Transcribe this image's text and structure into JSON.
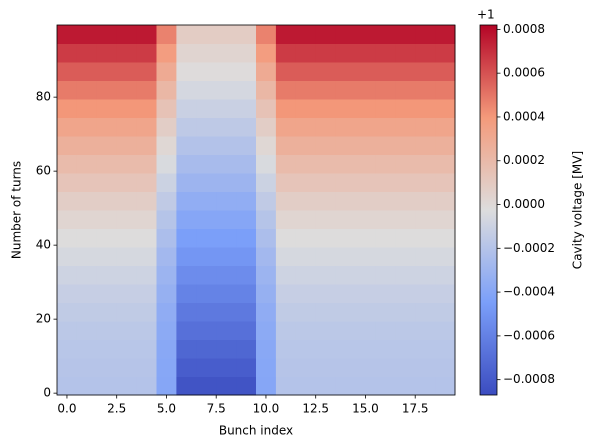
{
  "chart_data": {
    "type": "heatmap",
    "xlabel": "Bunch index",
    "ylabel": "Number of turns",
    "colorbar_label": "Cavity voltage [MV]",
    "colorbar_offset": "+1",
    "colormap": "coolwarm",
    "x": [
      0,
      1,
      2,
      3,
      4,
      5,
      6,
      7,
      8,
      9,
      10,
      11,
      12,
      13,
      14,
      15,
      16,
      17,
      18,
      19
    ],
    "y": [
      2,
      7,
      12,
      17,
      22,
      27,
      32,
      37,
      42,
      47,
      52,
      57,
      62,
      67,
      72,
      77,
      82,
      87,
      92,
      97
    ],
    "z": [
      [
        -0.0002,
        -0.0002,
        -0.0002,
        -0.0002,
        -0.0002,
        -0.0004,
        -0.000831,
        -0.000831,
        -0.000831,
        -0.000831,
        -0.0004,
        -0.0002,
        -0.0002,
        -0.0002,
        -0.0002,
        -0.0002,
        -0.0002,
        -0.0002,
        -0.0002,
        -0.0002
      ],
      [
        -0.000195,
        -0.000195,
        -0.000195,
        -0.000195,
        -0.000195,
        -0.000396,
        -0.000783,
        -0.000783,
        -0.000783,
        -0.000783,
        -0.000396,
        -0.000195,
        -0.000195,
        -0.000195,
        -0.000195,
        -0.000195,
        -0.000195,
        -0.000195,
        -0.000195,
        -0.000195
      ],
      [
        -0.000185,
        -0.000185,
        -0.000185,
        -0.000185,
        -0.000185,
        -0.000387,
        -0.000735,
        -0.000735,
        -0.000735,
        -0.000735,
        -0.000387,
        -0.000185,
        -0.000185,
        -0.000185,
        -0.000185,
        -0.000185,
        -0.000185,
        -0.000185,
        -0.000185,
        -0.000185
      ],
      [
        -0.00017,
        -0.00017,
        -0.00017,
        -0.00017,
        -0.00017,
        -0.000373,
        -0.000687,
        -0.000687,
        -0.000687,
        -0.000687,
        -0.000373,
        -0.00017,
        -0.00017,
        -0.00017,
        -0.00017,
        -0.00017,
        -0.00017,
        -0.00017,
        -0.00017,
        -0.00017
      ],
      [
        -0.00015,
        -0.00015,
        -0.00015,
        -0.00015,
        -0.00015,
        -0.000356,
        -0.000639,
        -0.000639,
        -0.000639,
        -0.000639,
        -0.000356,
        -0.00015,
        -0.00015,
        -0.00015,
        -0.00015,
        -0.00015,
        -0.00015,
        -0.00015,
        -0.00015,
        -0.00015
      ],
      [
        -0.000126,
        -0.000126,
        -0.000126,
        -0.000126,
        -0.000126,
        -0.000333,
        -0.000591,
        -0.000591,
        -0.000591,
        -0.000591,
        -0.000333,
        -0.000126,
        -0.000126,
        -0.000126,
        -0.000126,
        -0.000126,
        -0.000126,
        -0.000126,
        -0.000126,
        -0.000126
      ],
      [
        -9.6e-05,
        -9.6e-05,
        -9.6e-05,
        -9.6e-05,
        -9.6e-05,
        -0.000306,
        -0.000543,
        -0.000543,
        -0.000543,
        -0.000543,
        -0.000306,
        -9.6e-05,
        -9.6e-05,
        -9.6e-05,
        -9.6e-05,
        -9.6e-05,
        -9.6e-05,
        -9.6e-05,
        -9.6e-05,
        -9.6e-05
      ],
      [
        -6e-05,
        -6e-05,
        -6e-05,
        -6e-05,
        -6e-05,
        -0.000274,
        -0.000495,
        -0.000495,
        -0.000495,
        -0.000495,
        -0.000274,
        -6e-05,
        -6e-05,
        -6e-05,
        -6e-05,
        -6e-05,
        -6e-05,
        -6e-05,
        -6e-05,
        -6e-05
      ],
      [
        -2e-05,
        -2e-05,
        -2e-05,
        -2e-05,
        -2e-05,
        -0.000238,
        -0.000447,
        -0.000447,
        -0.000447,
        -0.000447,
        -0.000238,
        -2e-05,
        -2e-05,
        -2e-05,
        -2e-05,
        -2e-05,
        -2e-05,
        -2e-05,
        -2e-05,
        -2e-05
      ],
      [
        2.5e-05,
        2.5e-05,
        2.5e-05,
        2.5e-05,
        2.5e-05,
        -0.000197,
        -0.000399,
        -0.000399,
        -0.000399,
        -0.000399,
        -0.000197,
        2.5e-05,
        2.5e-05,
        2.5e-05,
        2.5e-05,
        2.5e-05,
        2.5e-05,
        2.5e-05,
        2.5e-05,
        2.5e-05
      ],
      [
        7.6e-05,
        7.6e-05,
        7.6e-05,
        7.6e-05,
        7.6e-05,
        -0.000152,
        -0.000351,
        -0.000351,
        -0.000351,
        -0.000351,
        -0.000152,
        7.6e-05,
        7.6e-05,
        7.6e-05,
        7.6e-05,
        7.6e-05,
        7.6e-05,
        7.6e-05,
        7.6e-05,
        7.6e-05
      ],
      [
        0.000132,
        0.000132,
        0.000132,
        0.000132,
        0.000132,
        -0.000102,
        -0.000303,
        -0.000303,
        -0.000303,
        -0.000303,
        -0.000102,
        0.000132,
        0.000132,
        0.000132,
        0.000132,
        0.000132,
        0.000132,
        0.000132,
        0.000132,
        0.000132
      ],
      [
        0.000192,
        0.000192,
        0.000192,
        0.000192,
        0.000192,
        -4.7e-05,
        -0.000255,
        -0.000255,
        -0.000255,
        -0.000255,
        -4.7e-05,
        0.000192,
        0.000192,
        0.000192,
        0.000192,
        0.000192,
        0.000192,
        0.000192,
        0.000192,
        0.000192
      ],
      [
        0.000258,
        0.000258,
        0.000258,
        0.000258,
        0.000258,
        1.2e-05,
        -0.000207,
        -0.000207,
        -0.000207,
        -0.000207,
        1.2e-05,
        0.000258,
        0.000258,
        0.000258,
        0.000258,
        0.000258,
        0.000258,
        0.000258,
        0.000258,
        0.000258
      ],
      [
        0.000329,
        0.000329,
        0.000329,
        0.000329,
        0.000329,
        7.6e-05,
        -0.000159,
        -0.000159,
        -0.000159,
        -0.000159,
        7.6e-05,
        0.000329,
        0.000329,
        0.000329,
        0.000329,
        0.000329,
        0.000329,
        0.000329,
        0.000329,
        0.000329
      ],
      [
        0.000405,
        0.000405,
        0.000405,
        0.000405,
        0.000405,
        0.000144,
        -0.000111,
        -0.000111,
        -0.000111,
        -0.000111,
        0.000144,
        0.000405,
        0.000405,
        0.000405,
        0.000405,
        0.000405,
        0.000405,
        0.000405,
        0.000405,
        0.000405
      ],
      [
        0.000486,
        0.000486,
        0.000486,
        0.000486,
        0.000486,
        0.000217,
        -6.3e-05,
        -6.3e-05,
        -6.3e-05,
        -6.3e-05,
        0.000217,
        0.000486,
        0.000486,
        0.000486,
        0.000486,
        0.000486,
        0.000486,
        0.000486,
        0.000486,
        0.000486
      ],
      [
        0.000572,
        0.000572,
        0.000572,
        0.000572,
        0.000572,
        0.000295,
        -1.5e-05,
        -1.5e-05,
        -1.5e-05,
        -1.5e-05,
        0.000295,
        0.000572,
        0.000572,
        0.000572,
        0.000572,
        0.000572,
        0.000572,
        0.000572,
        0.000572,
        0.000572
      ],
      [
        0.000664,
        0.000664,
        0.000664,
        0.000664,
        0.000664,
        0.000377,
        3.3e-05,
        3.3e-05,
        3.3e-05,
        3.3e-05,
        0.000377,
        0.000664,
        0.000664,
        0.000664,
        0.000664,
        0.000664,
        0.000664,
        0.000664,
        0.000664,
        0.000664
      ],
      [
        0.00076,
        0.00076,
        0.00076,
        0.00076,
        0.00076,
        0.000464,
        8.1e-05,
        8.1e-05,
        8.1e-05,
        8.1e-05,
        0.000464,
        0.00076,
        0.00076,
        0.00076,
        0.00076,
        0.00076,
        0.00076,
        0.00076,
        0.00076,
        0.00076
      ]
    ],
    "xlim": [
      -0.5,
      19.5
    ],
    "ylim": [
      -0.5,
      99.5
    ],
    "xticks": [
      {
        "value": 0,
        "label": "0.0"
      },
      2.5,
      {
        "value": 5,
        "label": "5.0"
      },
      7.5,
      {
        "value": 10,
        "label": "10.0"
      },
      12.5,
      {
        "value": 15,
        "label": "15.0"
      },
      17.5
    ],
    "yticks": [
      0,
      20,
      40,
      60,
      80
    ],
    "clim": [
      -0.00087,
      0.00082
    ],
    "cticks": [
      {
        "value": -0.0008,
        "label": "−0.0008"
      },
      {
        "value": -0.0006,
        "label": "−0.0006"
      },
      {
        "value": -0.0004,
        "label": "−0.0004"
      },
      {
        "value": -0.0002,
        "label": "−0.0002"
      },
      {
        "value": 0,
        "label": "0.0000"
      },
      0.0002,
      0.0004,
      0.0006,
      0.0008
    ]
  }
}
